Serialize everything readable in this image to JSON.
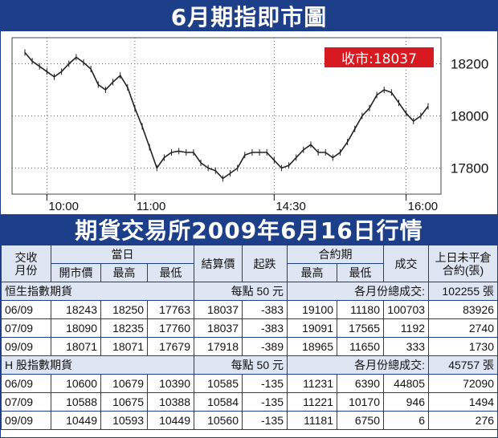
{
  "title_top": "6月期指即市圖",
  "title_bottom": "期貨交易所2009年6月16日行情",
  "close_badge": "收市:18037",
  "chart_data": {
    "type": "line",
    "title": "6月期指即市圖",
    "x_ticks": [
      "10:00",
      "11:00",
      "14:30",
      "16:00"
    ],
    "y_ticks": [
      18200,
      18000,
      17800
    ],
    "ylim": [
      17700,
      18300
    ],
    "grid": true,
    "annotation": "收市:18037",
    "x": [
      "09:45",
      "09:50",
      "09:55",
      "10:00",
      "10:05",
      "10:10",
      "10:15",
      "10:20",
      "10:25",
      "10:30",
      "10:35",
      "10:40",
      "10:45",
      "10:50",
      "10:55",
      "11:00",
      "11:05",
      "11:10",
      "11:15",
      "11:20",
      "11:25",
      "11:30",
      "11:35",
      "11:40",
      "11:45",
      "11:50",
      "11:55",
      "12:00",
      "12:05",
      "12:10",
      "12:15",
      "12:20",
      "12:25",
      "12:30",
      "14:30",
      "14:35",
      "14:40",
      "14:45",
      "14:50",
      "14:55",
      "15:00",
      "15:05",
      "15:10",
      "15:15",
      "15:20",
      "15:25",
      "15:30",
      "15:35",
      "15:40",
      "15:45",
      "15:50",
      "15:55",
      "16:00",
      "16:05",
      "16:10",
      "16:15"
    ],
    "series": [
      {
        "values": [
          18243,
          18210,
          18190,
          18170,
          18150,
          18170,
          18200,
          18225,
          18205,
          18180,
          18120,
          18100,
          18130,
          18155,
          18110,
          18030,
          17960,
          17880,
          17800,
          17840,
          17860,
          17865,
          17860,
          17860,
          17820,
          17800,
          17790,
          17760,
          17780,
          17800,
          17850,
          17860,
          17860,
          17860,
          17830,
          17800,
          17810,
          17840,
          17870,
          17890,
          17860,
          17860,
          17840,
          17860,
          17900,
          17950,
          18000,
          18030,
          18080,
          18100,
          18090,
          18050,
          18010,
          17980,
          18000,
          18037
        ]
      }
    ]
  },
  "table": {
    "headers": {
      "contract": "交收\n月份",
      "day": "當日",
      "open": "開市價",
      "high": "最高",
      "low": "最低",
      "settle": "結算價",
      "change": "起跌",
      "life": "合約期",
      "life_high": "最高",
      "life_low": "最低",
      "volume": "成交",
      "oi": "上日未平倉\n合約(張)"
    },
    "groups": [
      {
        "name": "恒生指數期貨",
        "per_point": "每點 50 元",
        "total_label": "各月份總成交:",
        "total": "102255 張",
        "rows": [
          [
            "06/09",
            "18243",
            "18250",
            "17763",
            "18037",
            "-383",
            "19100",
            "11180",
            "100703",
            "83926"
          ],
          [
            "07/09",
            "18090",
            "18235",
            "17760",
            "18037",
            "-383",
            "19091",
            "17565",
            "1192",
            "2740"
          ],
          [
            "09/09",
            "18071",
            "18071",
            "17679",
            "17918",
            "-389",
            "18965",
            "11650",
            "333",
            "1730"
          ]
        ]
      },
      {
        "name": "H 股指數期貨",
        "per_point": "每點 50 元",
        "total_label": "各月份總成交:",
        "total": "45757 張",
        "rows": [
          [
            "06/09",
            "10600",
            "10679",
            "10390",
            "10585",
            "-135",
            "11231",
            "6390",
            "44805",
            "72090"
          ],
          [
            "07/09",
            "10588",
            "10675",
            "10388",
            "10584",
            "-135",
            "11221",
            "10170",
            "946",
            "1494"
          ],
          [
            "09/09",
            "10449",
            "10593",
            "10449",
            "10560",
            "-135",
            "11181",
            "6750",
            "6",
            "276"
          ]
        ]
      }
    ]
  }
}
